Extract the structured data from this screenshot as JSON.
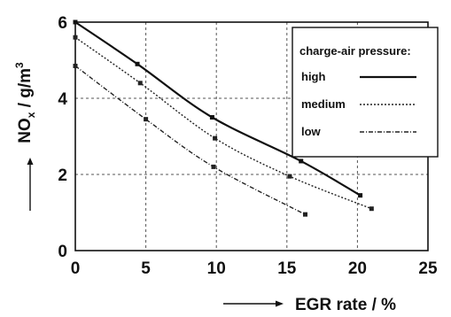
{
  "chart_data": {
    "type": "line",
    "xlabel": "EGR rate / %",
    "ylabel_main": "NO",
    "ylabel_sub": "x",
    "ylabel_unit": " / g/m",
    "ylabel_sup": "3",
    "xlim": [
      0,
      25
    ],
    "ylim": [
      0,
      6
    ],
    "x_ticks": [
      "0",
      "5",
      "10",
      "15",
      "20",
      "25"
    ],
    "y_ticks": [
      "0",
      "2",
      "4",
      "6"
    ],
    "grid": true,
    "legend": {
      "title": "charge-air pressure:",
      "placement": "top-right"
    },
    "series": [
      {
        "name": "high",
        "style": "solid",
        "color": "#111111",
        "points": [
          {
            "x": 0,
            "y": 6.0
          },
          {
            "x": 4.4,
            "y": 4.9
          },
          {
            "x": 9.7,
            "y": 3.5
          },
          {
            "x": 16.0,
            "y": 2.35
          },
          {
            "x": 20.2,
            "y": 1.45
          }
        ]
      },
      {
        "name": "medium",
        "style": "dotted",
        "color": "#222222",
        "points": [
          {
            "x": 0,
            "y": 5.6
          },
          {
            "x": 4.6,
            "y": 4.4
          },
          {
            "x": 9.9,
            "y": 2.95
          },
          {
            "x": 15.2,
            "y": 1.95
          },
          {
            "x": 21.0,
            "y": 1.1
          }
        ]
      },
      {
        "name": "low",
        "style": "dashdot",
        "color": "#222222",
        "points": [
          {
            "x": 0,
            "y": 4.85
          },
          {
            "x": 5.0,
            "y": 3.45
          },
          {
            "x": 9.8,
            "y": 2.2
          },
          {
            "x": 16.3,
            "y": 0.95
          }
        ]
      }
    ]
  }
}
